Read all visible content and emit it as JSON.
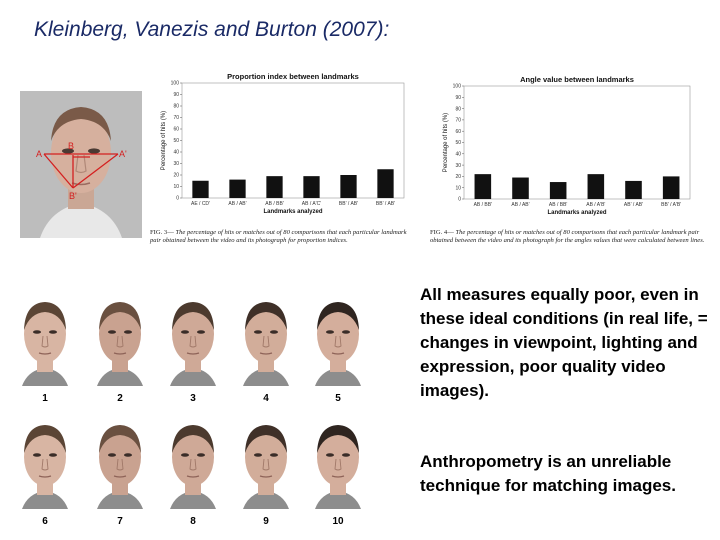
{
  "slide": {
    "title": "Kleinberg, Vanezis and Burton (2007):",
    "text_1": "All measures equally poor, even in these ideal conditions (in real life, = changes in viewpoint, lighting and expression, poor quality video images).",
    "text_2": "Anthropometry is an unreliable technique for matching images."
  },
  "landmarks": {
    "A": "A",
    "A_prime": "A'",
    "B": "B",
    "B_prime": "B'"
  },
  "captions": {
    "fig3_label": "FIG. 3—",
    "fig3_text": "The percentage of hits or matches out of 80 comparisons that each particular landmark pair obtained between the video and its photograph for proportion indices.",
    "fig4_label": "FIG. 4—",
    "fig4_text": "The percentage of hits or matches out of 80 comparisons that each particular landmark pair obtained between the video and its photograph for the angles values that were calculated between lines."
  },
  "faces": [
    "1",
    "2",
    "3",
    "4",
    "5",
    "6",
    "7",
    "8",
    "9",
    "10"
  ],
  "colors": {
    "title": "#1a2a66",
    "bar": "#111111",
    "landmark": "#d42020"
  },
  "chart_data": [
    {
      "type": "bar",
      "title": "Proportion index between landmarks",
      "xlabel": "Landmarks analyzed",
      "ylabel": "Percentage of hits (%)",
      "ylim": [
        0,
        100
      ],
      "yticks": [
        "0",
        "10",
        "20",
        "30",
        "40",
        "50",
        "60",
        "70",
        "80",
        "90",
        "100"
      ],
      "categories": [
        "AE / CD'",
        "AB / AB'",
        "AB / BB'",
        "AB / A'C'",
        "BB' / AB'",
        "BB' / AB'"
      ],
      "values": [
        15,
        16,
        19,
        19,
        20,
        25
      ]
    },
    {
      "type": "bar",
      "title": "Angle value between landmarks",
      "xlabel": "Landmarks analyzed",
      "ylabel": "Percentage of hits (%)",
      "ylim": [
        0,
        100
      ],
      "yticks": [
        "0",
        "10",
        "20",
        "30",
        "40",
        "50",
        "60",
        "70",
        "80",
        "90",
        "100"
      ],
      "categories": [
        "AB / BB'",
        "AB / AB'",
        "AB / BB'",
        "AB / A'B'",
        "AB' / AB'",
        "BB' / A'B'"
      ],
      "values": [
        22,
        19,
        15,
        22,
        16,
        20
      ]
    }
  ]
}
